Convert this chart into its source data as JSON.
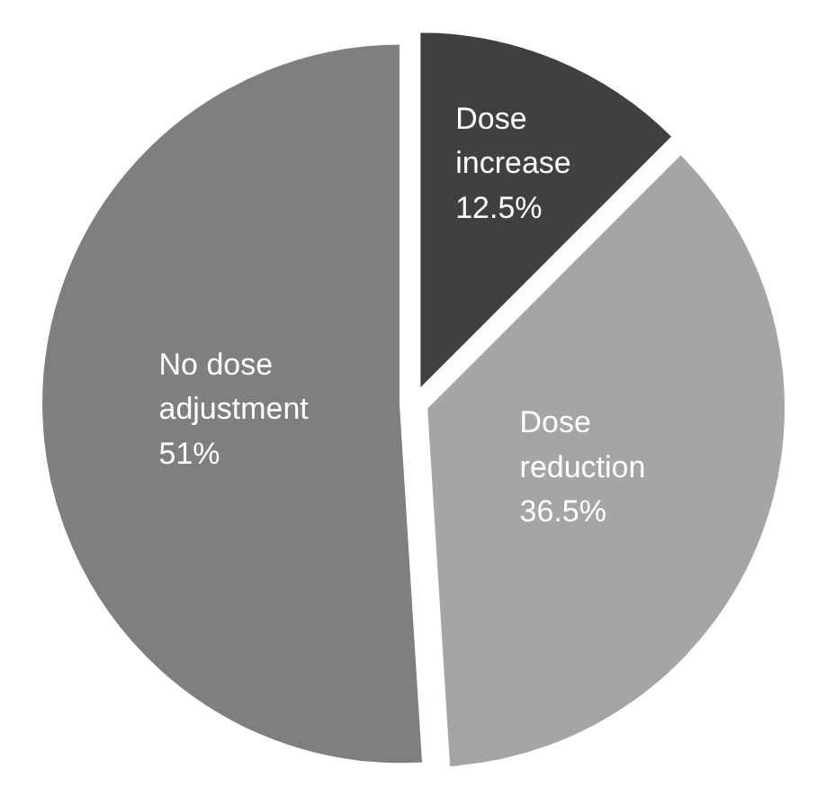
{
  "chart_data": {
    "type": "pie",
    "categories": [
      "Dose increase",
      "Dose reduction",
      "No dose adjustment"
    ],
    "values": [
      12.5,
      36.5,
      51
    ],
    "value_labels": [
      "12.5%",
      "36.5%",
      "51%"
    ],
    "colors": [
      "#404040",
      "#a5a5a5",
      "#7f7f7f"
    ]
  }
}
